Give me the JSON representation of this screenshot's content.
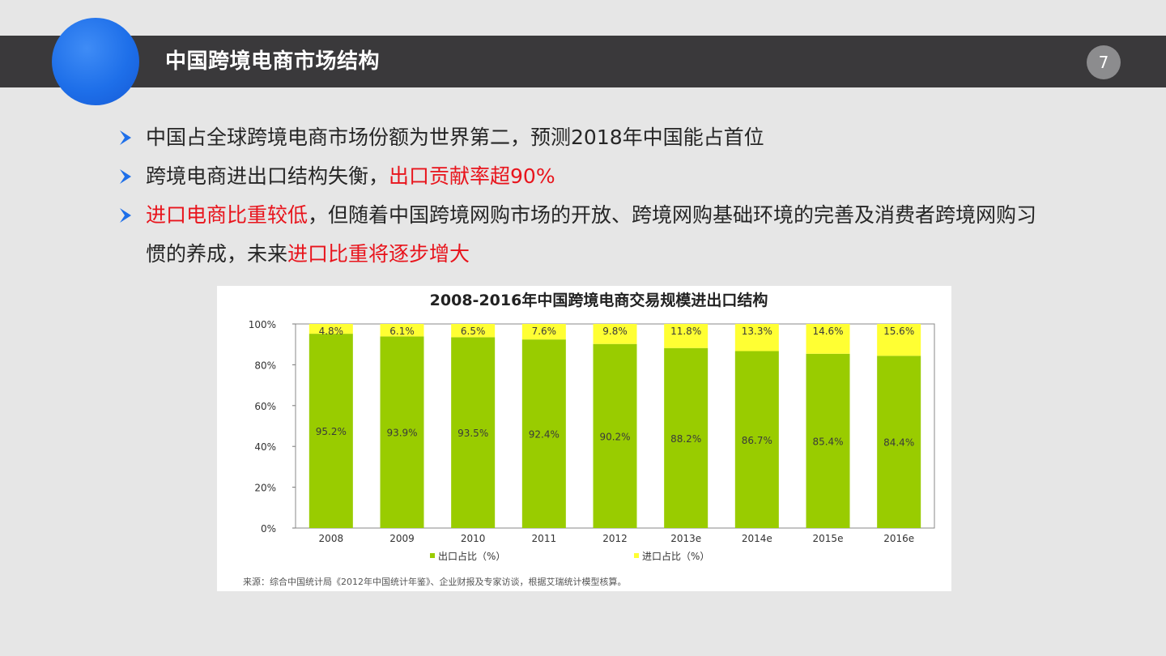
{
  "page": {
    "title": "中国跨境电商市场结构",
    "page_number": "7"
  },
  "bullets": [
    {
      "segments": [
        {
          "text": "中国占全球跨境电商市场份额为世界第二，预测2018年中国能占首位",
          "highlight": false
        }
      ]
    },
    {
      "segments": [
        {
          "text": "跨境电商进出口结构失衡，",
          "highlight": false
        },
        {
          "text": "出口贡献率超90%",
          "highlight": true
        }
      ]
    },
    {
      "segments": [
        {
          "text": "进口电商比重较低",
          "highlight": true
        },
        {
          "text": "，但随着中国跨境网购市场的开放、跨境网购基础环境的完善及消费者跨境网购习惯的养成，未来",
          "highlight": false
        },
        {
          "text": "进口比重将逐步增大",
          "highlight": true
        }
      ]
    }
  ],
  "colors": {
    "accent_blue": "#1e6fe9",
    "bar_export": "#99cc00",
    "bar_import": "#ffff33",
    "highlight_red": "#e8141c"
  },
  "icons": {
    "bullet": "chevron-right-icon"
  },
  "chart_data": {
    "type": "bar",
    "stacked": true,
    "title": "2008-2016年中国跨境电商交易规模进出口结构",
    "categories": [
      "2008",
      "2009",
      "2010",
      "2011",
      "2012",
      "2013e",
      "2014e",
      "2015e",
      "2016e"
    ],
    "series": [
      {
        "name": "出口占比（%）",
        "color": "#99cc00",
        "values": [
          95.2,
          93.9,
          93.5,
          92.4,
          90.2,
          88.2,
          86.7,
          85.4,
          84.4
        ]
      },
      {
        "name": "进口占比（%）",
        "color": "#ffff33",
        "values": [
          4.8,
          6.1,
          6.5,
          7.6,
          9.8,
          11.8,
          13.3,
          14.6,
          15.6
        ]
      }
    ],
    "y_ticks": [
      "0%",
      "20%",
      "40%",
      "60%",
      "80%",
      "100%"
    ],
    "ylim": [
      0,
      100
    ],
    "grid": false,
    "legend_position": "bottom",
    "source": "来源：综合中国统计局《2012年中国统计年鉴》、企业财报及专家访谈，根据艾瑞统计模型核算。"
  }
}
